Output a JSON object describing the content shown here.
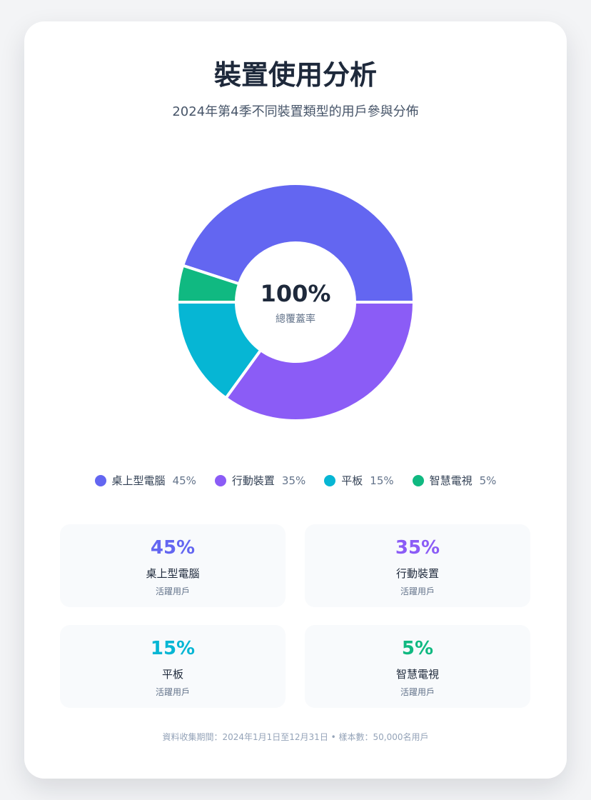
{
  "title": "裝置使用分析",
  "subtitle": "2024年第4季不同裝置類型的用戶參與分佈",
  "center": {
    "value": "100%",
    "label": "總覆蓋率"
  },
  "chart_data": {
    "type": "pie",
    "title": "裝置使用分析",
    "subtitle": "2024年第4季不同裝置類型的用戶參與分佈",
    "categories": [
      "桌上型電腦",
      "行動裝置",
      "平板",
      "智慧電視"
    ],
    "values": [
      45,
      35,
      15,
      5
    ],
    "unit": "%",
    "colors": [
      "#6366f1",
      "#8b5cf6",
      "#06b6d4",
      "#10b981"
    ],
    "legend_position": "bottom"
  },
  "legend": [
    {
      "label": "桌上型電腦",
      "value": "45%"
    },
    {
      "label": "行動裝置",
      "value": "35%"
    },
    {
      "label": "平板",
      "value": "15%"
    },
    {
      "label": "智慧電視",
      "value": "5%"
    }
  ],
  "stats": [
    {
      "value": "45%",
      "name": "桌上型電腦",
      "sub": "活躍用戶"
    },
    {
      "value": "35%",
      "name": "行動裝置",
      "sub": "活躍用戶"
    },
    {
      "value": "15%",
      "name": "平板",
      "sub": "活躍用戶"
    },
    {
      "value": "5%",
      "name": "智慧電視",
      "sub": "活躍用戶"
    }
  ],
  "footnote": "資料收集期間：2024年1月1日至12月31日 • 樣本數：50,000名用戶"
}
